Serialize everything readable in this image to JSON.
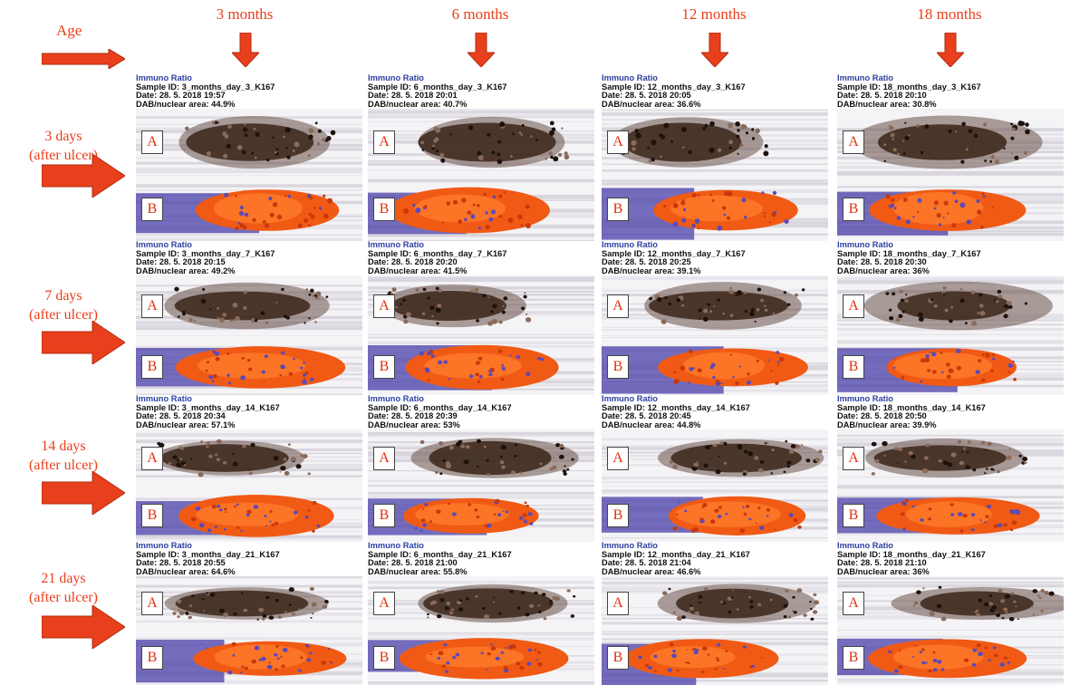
{
  "header": {
    "age_label": "Age",
    "columns": [
      "3 months",
      "6 months",
      "12 months",
      "18 months"
    ]
  },
  "rows": [
    {
      "line1": "3 days",
      "line2": "(after ulcer)"
    },
    {
      "line1": "7 days",
      "line2": "(after ulcer)"
    },
    {
      "line1": "14 days",
      "line2": "(after ulcer)"
    },
    {
      "line1": "21 days",
      "line2": "(after ulcer)"
    }
  ],
  "panels": [
    [
      {
        "title": "Immuno Ratio",
        "sample": "Sample ID: 3_months_day_3_K167",
        "date": "Date: 28. 5. 2018      19:57",
        "dab": "DAB/nuclear area: 44.9%"
      },
      {
        "title": "Immuno Ratio",
        "sample": "Sample ID: 6_months_day_3_K167",
        "date": "Date: 28. 5. 2018      20:01",
        "dab": "DAB/nuclear area: 40.7%"
      },
      {
        "title": "Immuno Ratio",
        "sample": "Sample ID: 12_months_day_3_K167",
        "date": "Date: 28. 5. 2018      20:05",
        "dab": "DAB/nuclear area: 36.6%"
      },
      {
        "title": "Immuno Ratio",
        "sample": "Sample ID: 18_months_day_3_K167",
        "date": "Date: 28. 5. 2018      20:10",
        "dab": "DAB/nuclear area: 30.8%"
      }
    ],
    [
      {
        "title": "Immuno Ratio",
        "sample": "Sample ID: 3_months_day_7_K167",
        "date": "Date: 28. 5. 2018      20:15",
        "dab": "DAB/nuclear area: 49.2%"
      },
      {
        "title": "Immuno Ratio",
        "sample": "Sample ID: 6_months_day_7_K167",
        "date": "Date: 28. 5. 2018      20:20",
        "dab": "DAB/nuclear area: 41.5%"
      },
      {
        "title": "Immuno Ratio",
        "sample": "Sample ID: 12_months_day_7_K167",
        "date": "Date: 28. 5. 2018      20:25",
        "dab": "DAB/nuclear area: 39.1%"
      },
      {
        "title": "Immuno Ratio",
        "sample": "Sample ID: 18_months_day_7_K167",
        "date": "Date: 28. 5. 2018      20:30",
        "dab": "DAB/nuclear area: 36%"
      }
    ],
    [
      {
        "title": "Immuno Ratio",
        "sample": "Sample ID: 3_months_day_14_K167",
        "date": "Date: 28. 5. 2018      20:34",
        "dab": "DAB/nuclear area: 57.1%"
      },
      {
        "title": "Immuno Ratio",
        "sample": "Sample ID: 6_months_day_14_K167",
        "date": "Date: 28. 5. 2018      20:39",
        "dab": "DAB/nuclear area: 53%"
      },
      {
        "title": "Immuno Ratio",
        "sample": "Sample ID: 12_months_day_14_K167",
        "date": "Date: 28. 5. 2018      20:45",
        "dab": "DAB/nuclear area: 44.8%"
      },
      {
        "title": "Immuno Ratio",
        "sample": "Sample ID: 18_months_day_14_K167",
        "date": "Date: 28. 5. 2018      20:50",
        "dab": "DAB/nuclear area: 39.9%"
      }
    ],
    [
      {
        "title": "Immuno Ratio",
        "sample": "Sample ID: 3_months_day_21_K167",
        "date": "Date: 28. 5. 2018      20:55",
        "dab": "DAB/nuclear area: 64.6%"
      },
      {
        "title": "Immuno Ratio",
        "sample": "Sample ID: 6_months_day_21_K167",
        "date": "Date: 28. 5. 2018      21:00",
        "dab": "DAB/nuclear area: 55.8%"
      },
      {
        "title": "Immuno Ratio",
        "sample": "Sample ID: 12_months_day_21_K167",
        "date": "Date: 28. 5. 2018      21:04",
        "dab": "DAB/nuclear area: 46.6%"
      },
      {
        "title": "Immuno Ratio",
        "sample": "Sample ID: 18_months_day_21_K167",
        "date": "Date: 28. 5. 2018      21:10",
        "dab": "DAB/nuclear area: 36%"
      }
    ]
  ],
  "letters": {
    "a": "A",
    "b": "B"
  },
  "colors": {
    "arrow": "#e8401c",
    "label": "#e8401c",
    "title": "#2c3fa0",
    "stain_brown": "#3a2418",
    "stain_orange": "#f05a14",
    "stain_purple": "#4a3fa8"
  }
}
